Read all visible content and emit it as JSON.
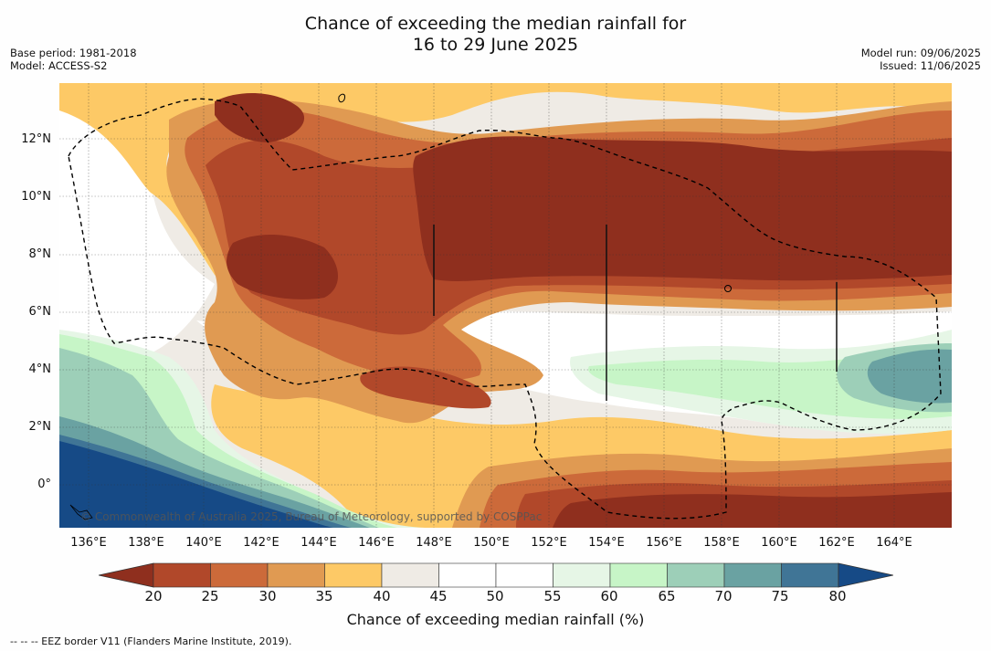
{
  "title": {
    "line1": "Chance of exceeding the median rainfall for",
    "line2": "16 to 29 June 2025"
  },
  "meta_left": {
    "base_period": "Base period: 1981-2018",
    "model": "Model: ACCESS-S2"
  },
  "meta_right": {
    "model_run": "Model run: 09/06/2025",
    "issued": "Issued: 11/06/2025"
  },
  "map": {
    "lat_labels": [
      "12°N",
      "10°N",
      "8°N",
      "6°N",
      "4°N",
      "2°N",
      "0°"
    ],
    "lon_labels": [
      "136°E",
      "138°E",
      "140°E",
      "142°E",
      "144°E",
      "146°E",
      "148°E",
      "150°E",
      "152°E",
      "154°E",
      "156°E",
      "158°E",
      "160°E",
      "162°E",
      "164°E"
    ],
    "copyright": "© Commonwealth of Australia 2025, Bureau of Meteorology, supported by COSPPac",
    "colors": {
      "c20": "#8f2f1e",
      "c25": "#b1482a",
      "c30": "#cc6a3a",
      "c35": "#e09a52",
      "c40": "#fdc966",
      "c45": "#efebe5",
      "c50": "#ffffff",
      "c55": "#ffffff",
      "c60": "#e6f6e6",
      "c65": "#c7f5c7",
      "c70": "#9dcfb8",
      "c75": "#6aa2a2",
      "c80": "#407596",
      "c80plus": "#164a86"
    }
  },
  "colorbar": {
    "ticks": [
      "20",
      "25",
      "30",
      "35",
      "40",
      "45",
      "50",
      "55",
      "60",
      "65",
      "70",
      "75",
      "80"
    ],
    "label": "Chance of exceeding median rainfall (%)",
    "colors": [
      "#8f2f1e",
      "#b1482a",
      "#cc6a3a",
      "#e09a52",
      "#fdc966",
      "#efebe5",
      "#ffffff",
      "#ffffff",
      "#e6f6e6",
      "#c7f5c7",
      "#9dcfb8",
      "#6aa2a2",
      "#407596",
      "#164a86"
    ]
  },
  "footer": "--  --  -- EEZ border V11 (Flanders Marine Institute, 2019)."
}
